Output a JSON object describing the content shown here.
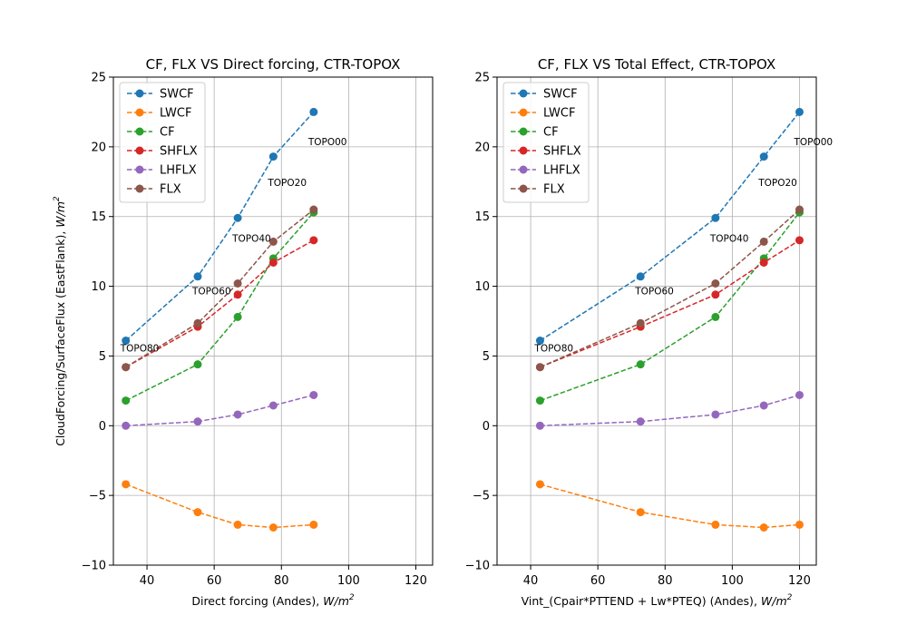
{
  "chart_data": [
    {
      "type": "line",
      "title": "CF, FLX VS Direct forcing, CTR-TOPOX",
      "xlabel": "Direct forcing (Andes), ",
      "xlabel_unit": "W/m",
      "xlabel_unit_sup": "2",
      "ylabel": "CloudForcing/SurfaceFlux (EastFlank), ",
      "ylabel_unit": "W/m",
      "ylabel_unit_sup": "2",
      "xlim": [
        30,
        125
      ],
      "ylim": [
        -10,
        25
      ],
      "xticks": [
        40,
        60,
        80,
        100,
        120
      ],
      "yticks": [
        -10,
        -5,
        0,
        5,
        10,
        15,
        20,
        25
      ],
      "grid": true,
      "legend_position": "upper-left",
      "x": [
        33.7,
        55.1,
        67.0,
        77.6,
        89.6
      ],
      "series": [
        {
          "name": "SWCF",
          "color": "#1f77b4",
          "values": [
            6.1,
            10.7,
            14.9,
            19.3,
            22.5
          ]
        },
        {
          "name": "LWCF",
          "color": "#ff7f0e",
          "values": [
            -4.2,
            -6.2,
            -7.1,
            -7.3,
            -7.1
          ]
        },
        {
          "name": "CF",
          "color": "#2ca02c",
          "values": [
            1.8,
            4.4,
            7.8,
            12.0,
            15.3
          ]
        },
        {
          "name": "SHFLX",
          "color": "#d62728",
          "values": [
            4.2,
            7.1,
            9.4,
            11.7,
            13.3
          ]
        },
        {
          "name": "LHFLX",
          "color": "#9467bd",
          "values": [
            0.0,
            0.3,
            0.8,
            1.45,
            2.2
          ]
        },
        {
          "name": "FLX",
          "color": "#8c564b",
          "values": [
            4.2,
            7.35,
            10.2,
            13.2,
            15.5
          ]
        }
      ],
      "annotations": [
        {
          "text": "TOPO80",
          "x": 33.7,
          "y": 5.5
        },
        {
          "text": "TOPO60",
          "x": 55.1,
          "y": 9.6
        },
        {
          "text": "TOPO40",
          "x": 67.0,
          "y": 13.4
        },
        {
          "text": "TOPO20",
          "x": 77.6,
          "y": 17.4
        },
        {
          "text": "TOPO00",
          "x": 89.6,
          "y": 20.3
        }
      ]
    },
    {
      "type": "line",
      "title": "CF, FLX VS Total Effect, CTR-TOPOX",
      "xlabel": "Vint_(Cpair*PTTEND + Lw*PTEQ) (Andes), ",
      "xlabel_unit": "W/m",
      "xlabel_unit_sup": "2",
      "ylabel": "",
      "xlim": [
        30,
        125
      ],
      "ylim": [
        -10,
        25
      ],
      "xticks": [
        40,
        60,
        80,
        100,
        120
      ],
      "yticks": [
        -10,
        -5,
        0,
        5,
        10,
        15,
        20,
        25
      ],
      "grid": true,
      "legend_position": "upper-left",
      "x": [
        42.8,
        72.7,
        95.0,
        109.4,
        120.0
      ],
      "series": [
        {
          "name": "SWCF",
          "color": "#1f77b4",
          "values": [
            6.1,
            10.7,
            14.9,
            19.3,
            22.5
          ]
        },
        {
          "name": "LWCF",
          "color": "#ff7f0e",
          "values": [
            -4.2,
            -6.2,
            -7.1,
            -7.3,
            -7.1
          ]
        },
        {
          "name": "CF",
          "color": "#2ca02c",
          "values": [
            1.8,
            4.4,
            7.8,
            12.0,
            15.3
          ]
        },
        {
          "name": "SHFLX",
          "color": "#d62728",
          "values": [
            4.2,
            7.1,
            9.4,
            11.7,
            13.3
          ]
        },
        {
          "name": "LHFLX",
          "color": "#9467bd",
          "values": [
            0.0,
            0.3,
            0.8,
            1.45,
            2.2
          ]
        },
        {
          "name": "FLX",
          "color": "#8c564b",
          "values": [
            4.2,
            7.35,
            10.2,
            13.2,
            15.5
          ]
        }
      ],
      "annotations": [
        {
          "text": "TOPO80",
          "x": 42.8,
          "y": 5.5
        },
        {
          "text": "TOPO60",
          "x": 72.7,
          "y": 9.6
        },
        {
          "text": "TOPO40",
          "x": 95.0,
          "y": 13.4
        },
        {
          "text": "TOPO20",
          "x": 109.4,
          "y": 17.4
        },
        {
          "text": "TOPO00",
          "x": 120.0,
          "y": 20.3
        }
      ]
    }
  ]
}
